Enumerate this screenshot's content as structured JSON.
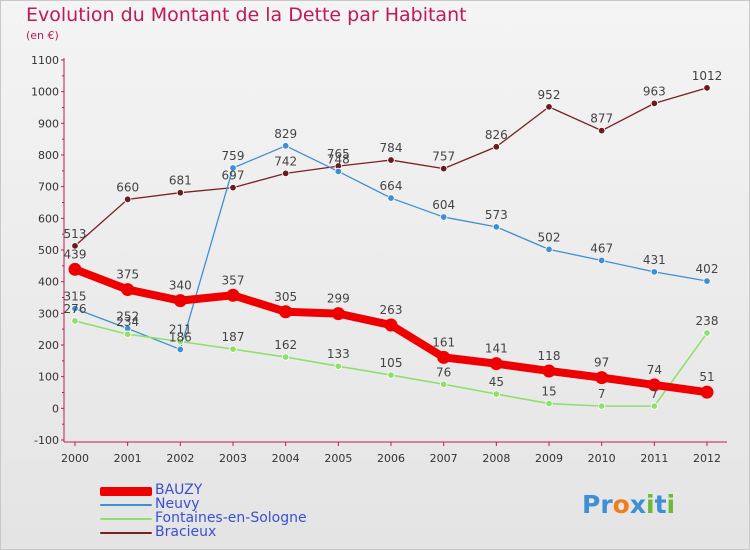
{
  "title": "Evolution du Montant de la Dette par Habitant",
  "unit": "(en €)",
  "logo": {
    "text": "Proxiti",
    "letters": [
      "P",
      "r",
      "o",
      "x",
      "i",
      "t",
      "i"
    ],
    "colors": [
      "#3f8fd6",
      "#3f8fd6",
      "#ee7d1e",
      "#3f8fd6",
      "#6cb83a",
      "#3f8fd6",
      "#6cb83a"
    ]
  },
  "chart_data": {
    "type": "line",
    "x": [
      "2000",
      "2001",
      "2002",
      "2003",
      "2004",
      "2005",
      "2006",
      "2007",
      "2008",
      "2009",
      "2010",
      "2011",
      "2012"
    ],
    "yticks": [
      "-100",
      "0",
      "100",
      "200",
      "300",
      "400",
      "500",
      "600",
      "700",
      "800",
      "900",
      "1000",
      "1100"
    ],
    "ylim": [
      -100,
      1100
    ],
    "grid": false,
    "legend_position": "bottom-left",
    "series": [
      {
        "name": "Bracieux",
        "color": "#7a1f24",
        "values": [
          513,
          660,
          681,
          697,
          742,
          765,
          784,
          757,
          826,
          952,
          877,
          963,
          1012
        ]
      },
      {
        "name": "Neuvy",
        "color": "#3f8fd6",
        "values": [
          315,
          252,
          186,
          759,
          829,
          748,
          664,
          604,
          573,
          502,
          467,
          431,
          402
        ]
      },
      {
        "name": "Fontaines-en-Sologne",
        "color": "#8fe06a",
        "values": [
          276,
          234,
          211,
          187,
          162,
          133,
          105,
          76,
          45,
          15,
          7,
          7,
          238
        ]
      },
      {
        "name": "BAUZY",
        "color": "#ee0000",
        "values": [
          439,
          375,
          340,
          357,
          305,
          299,
          263,
          161,
          141,
          118,
          97,
          74,
          51
        ]
      }
    ],
    "legend_order": [
      "BAUZY",
      "Neuvy",
      "Fontaines-en-Sologne",
      "Bracieux"
    ]
  }
}
